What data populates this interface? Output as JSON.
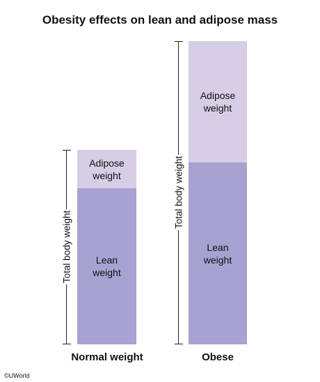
{
  "title": "Obesity effects on lean and adipose mass",
  "copyright": "©UWorld",
  "colors": {
    "adipose": "#d6cde6",
    "lean": "#a7a2d1"
  },
  "bars": [
    {
      "name": "Normal weight",
      "bracket_label": "Total body weight",
      "segments": [
        {
          "label": "Adipose\nweight"
        },
        {
          "label": "Lean\nweight"
        }
      ]
    },
    {
      "name": "Obese",
      "bracket_label": "Total body weight",
      "segments": [
        {
          "label": "Adipose\nweight"
        },
        {
          "label": "Lean\nweight"
        }
      ]
    }
  ]
}
